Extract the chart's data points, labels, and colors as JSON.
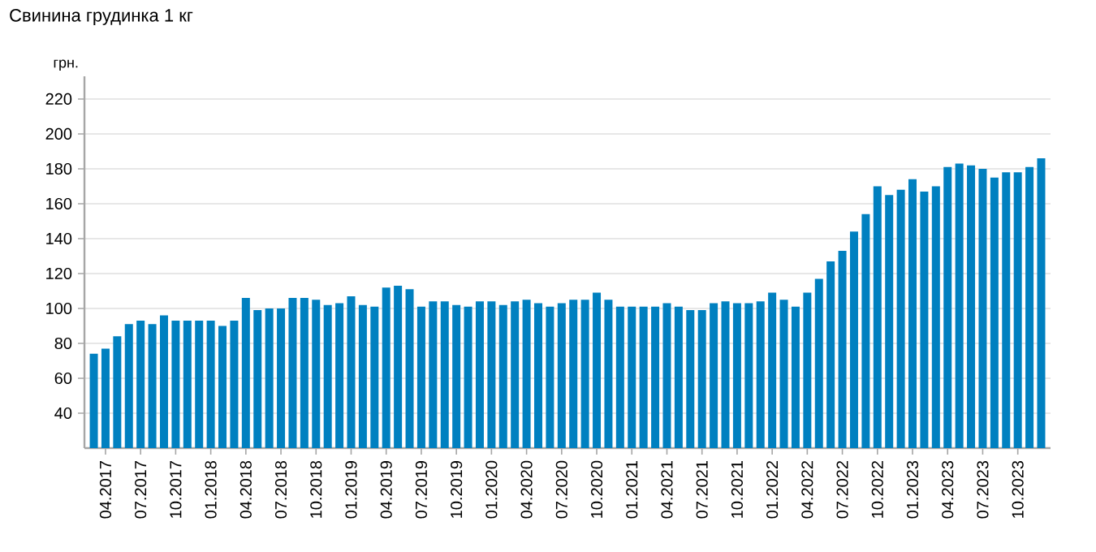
{
  "chart_data": {
    "type": "bar",
    "title": "Свинина грудинка 1 кг",
    "ylabel": "грн.",
    "categories": [
      null,
      "04.2017",
      null,
      null,
      "07.2017",
      null,
      null,
      "10.2017",
      null,
      null,
      "01.2018",
      null,
      null,
      "04.2018",
      null,
      null,
      "07.2018",
      null,
      null,
      "10.2018",
      null,
      null,
      "01.2019",
      null,
      null,
      "04.2019",
      null,
      null,
      "07.2019",
      null,
      null,
      "10.2019",
      null,
      null,
      "01.2020",
      null,
      null,
      "04.2020",
      null,
      null,
      "07.2020",
      null,
      null,
      "10.2020",
      null,
      null,
      "01.2021",
      null,
      null,
      "04.2021",
      null,
      null,
      "07.2021",
      null,
      null,
      "10.2021",
      null,
      null,
      "01.2022",
      null,
      null,
      "04.2022",
      null,
      null,
      "07.2022",
      null,
      null,
      "10.2022",
      null,
      null,
      "01.2023",
      null,
      null,
      "04.2023",
      null,
      null,
      "07.2023",
      null,
      null,
      "10.2023",
      null,
      null
    ],
    "values": [
      74,
      77,
      84,
      91,
      93,
      91,
      96,
      93,
      93,
      93,
      93,
      90,
      93,
      106,
      99,
      100,
      100,
      106,
      106,
      105,
      102,
      103,
      107,
      102,
      101,
      112,
      113,
      111,
      101,
      104,
      104,
      102,
      101,
      104,
      104,
      102,
      104,
      105,
      103,
      101,
      103,
      105,
      105,
      109,
      105,
      101,
      101,
      101,
      101,
      103,
      101,
      99,
      99,
      103,
      104,
      103,
      103,
      104,
      109,
      105,
      101,
      109,
      117,
      127,
      133,
      144,
      154,
      170,
      165,
      168,
      174,
      167,
      170,
      181,
      183,
      182,
      180,
      175,
      178,
      178,
      181,
      186
    ],
    "color": "#0080c0",
    "ylim": [
      20,
      233
    ],
    "yticks": [
      40,
      60,
      80,
      100,
      120,
      140,
      160,
      180,
      200,
      220
    ],
    "grid": "y"
  }
}
